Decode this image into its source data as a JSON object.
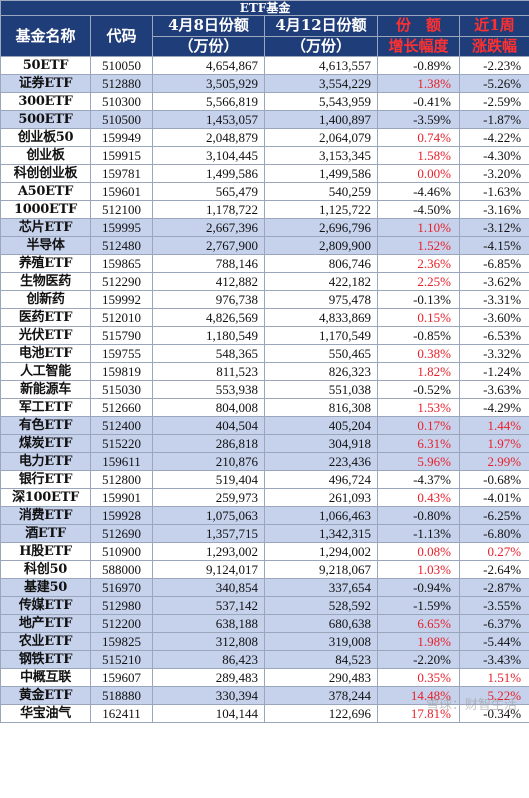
{
  "title": "ETF基金",
  "headers": {
    "name": "基金名称",
    "code": "代码",
    "share_apr8_line1": "4月8日份额",
    "share_apr8_line2": "（万份）",
    "share_apr12_line1": "4月12日份额",
    "share_apr12_line2": "（万份）",
    "growth_line1": "份　额",
    "growth_line2": "增长幅度",
    "week_line1": "近1周",
    "week_line2": "涨跌幅"
  },
  "rows": [
    {
      "name": "50ETF",
      "code": "510050",
      "apr8": "4,654,867",
      "apr12": "4,613,557",
      "growth": "-0.89%",
      "week": "-2.23%",
      "shade": false
    },
    {
      "name": "证券ETF",
      "code": "512880",
      "apr8": "3,505,929",
      "apr12": "3,554,229",
      "growth": "1.38%",
      "week": "-5.26%",
      "shade": true
    },
    {
      "name": "300ETF",
      "code": "510300",
      "apr8": "5,566,819",
      "apr12": "5,543,959",
      "growth": "-0.41%",
      "week": "-2.59%",
      "shade": false
    },
    {
      "name": "500ETF",
      "code": "510500",
      "apr8": "1,453,057",
      "apr12": "1,400,897",
      "growth": "-3.59%",
      "week": "-1.87%",
      "shade": true
    },
    {
      "name": "创业板50",
      "code": "159949",
      "apr8": "2,048,879",
      "apr12": "2,064,079",
      "growth": "0.74%",
      "week": "-4.22%",
      "shade": false
    },
    {
      "name": "创业板",
      "code": "159915",
      "apr8": "3,104,445",
      "apr12": "3,153,345",
      "growth": "1.58%",
      "week": "-4.30%",
      "shade": false
    },
    {
      "name": "科创创业板",
      "code": "159781",
      "apr8": "1,499,586",
      "apr12": "1,499,586",
      "growth": "0.00%",
      "week": "-3.20%",
      "shade": false
    },
    {
      "name": "A50ETF",
      "code": "159601",
      "apr8": "565,479",
      "apr12": "540,259",
      "growth": "-4.46%",
      "week": "-1.63%",
      "shade": false
    },
    {
      "name": "1000ETF",
      "code": "512100",
      "apr8": "1,178,722",
      "apr12": "1,125,722",
      "growth": "-4.50%",
      "week": "-3.16%",
      "shade": false
    },
    {
      "name": "芯片ETF",
      "code": "159995",
      "apr8": "2,667,396",
      "apr12": "2,696,796",
      "growth": "1.10%",
      "week": "-3.12%",
      "shade": true
    },
    {
      "name": "半导体",
      "code": "512480",
      "apr8": "2,767,900",
      "apr12": "2,809,900",
      "growth": "1.52%",
      "week": "-4.15%",
      "shade": true
    },
    {
      "name": "养殖ETF",
      "code": "159865",
      "apr8": "788,146",
      "apr12": "806,746",
      "growth": "2.36%",
      "week": "-6.85%",
      "shade": false
    },
    {
      "name": "生物医药",
      "code": "512290",
      "apr8": "412,882",
      "apr12": "422,182",
      "growth": "2.25%",
      "week": "-3.62%",
      "shade": false
    },
    {
      "name": "创新药",
      "code": "159992",
      "apr8": "976,738",
      "apr12": "975,478",
      "growth": "-0.13%",
      "week": "-3.31%",
      "shade": false
    },
    {
      "name": "医药ETF",
      "code": "512010",
      "apr8": "4,826,569",
      "apr12": "4,833,869",
      "growth": "0.15%",
      "week": "-3.60%",
      "shade": false
    },
    {
      "name": "光伏ETF",
      "code": "515790",
      "apr8": "1,180,549",
      "apr12": "1,170,549",
      "growth": "-0.85%",
      "week": "-6.53%",
      "shade": false
    },
    {
      "name": "电池ETF",
      "code": "159755",
      "apr8": "548,365",
      "apr12": "550,465",
      "growth": "0.38%",
      "week": "-3.32%",
      "shade": false
    },
    {
      "name": "人工智能",
      "code": "159819",
      "apr8": "811,523",
      "apr12": "826,323",
      "growth": "1.82%",
      "week": "-1.24%",
      "shade": false
    },
    {
      "name": "新能源车",
      "code": "515030",
      "apr8": "553,938",
      "apr12": "551,038",
      "growth": "-0.52%",
      "week": "-3.63%",
      "shade": false
    },
    {
      "name": "军工ETF",
      "code": "512660",
      "apr8": "804,008",
      "apr12": "816,308",
      "growth": "1.53%",
      "week": "-4.29%",
      "shade": false
    },
    {
      "name": "有色ETF",
      "code": "512400",
      "apr8": "404,504",
      "apr12": "405,204",
      "growth": "0.17%",
      "week": "1.44%",
      "shade": true
    },
    {
      "name": "煤炭ETF",
      "code": "515220",
      "apr8": "286,818",
      "apr12": "304,918",
      "growth": "6.31%",
      "week": "1.97%",
      "shade": true
    },
    {
      "name": "电力ETF",
      "code": "159611",
      "apr8": "210,876",
      "apr12": "223,436",
      "growth": "5.96%",
      "week": "2.99%",
      "shade": true
    },
    {
      "name": "银行ETF",
      "code": "512800",
      "apr8": "519,404",
      "apr12": "496,724",
      "growth": "-4.37%",
      "week": "-0.68%",
      "shade": false
    },
    {
      "name": "深100ETF",
      "code": "159901",
      "apr8": "259,973",
      "apr12": "261,093",
      "growth": "0.43%",
      "week": "-4.01%",
      "shade": false
    },
    {
      "name": "消费ETF",
      "code": "159928",
      "apr8": "1,075,063",
      "apr12": "1,066,463",
      "growth": "-0.80%",
      "week": "-6.25%",
      "shade": true
    },
    {
      "name": "酒ETF",
      "code": "512690",
      "apr8": "1,357,715",
      "apr12": "1,342,315",
      "growth": "-1.13%",
      "week": "-6.80%",
      "shade": true
    },
    {
      "name": "H股ETF",
      "code": "510900",
      "apr8": "1,293,002",
      "apr12": "1,294,002",
      "growth": "0.08%",
      "week": "0.27%",
      "shade": false
    },
    {
      "name": "科创50",
      "code": "588000",
      "apr8": "9,124,017",
      "apr12": "9,218,067",
      "growth": "1.03%",
      "week": "-2.64%",
      "shade": false
    },
    {
      "name": "基建50",
      "code": "516970",
      "apr8": "340,854",
      "apr12": "337,654",
      "growth": "-0.94%",
      "week": "-2.87%",
      "shade": true
    },
    {
      "name": "传媒ETF",
      "code": "512980",
      "apr8": "537,142",
      "apr12": "528,592",
      "growth": "-1.59%",
      "week": "-3.55%",
      "shade": true
    },
    {
      "name": "地产ETF",
      "code": "512200",
      "apr8": "638,188",
      "apr12": "680,638",
      "growth": "6.65%",
      "week": "-6.37%",
      "shade": true
    },
    {
      "name": "农业ETF",
      "code": "159825",
      "apr8": "312,808",
      "apr12": "319,008",
      "growth": "1.98%",
      "week": "-5.44%",
      "shade": true
    },
    {
      "name": "钢铁ETF",
      "code": "515210",
      "apr8": "86,423",
      "apr12": "84,523",
      "growth": "-2.20%",
      "week": "-3.43%",
      "shade": true
    },
    {
      "name": "中概互联",
      "code": "159607",
      "apr8": "289,483",
      "apr12": "290,483",
      "growth": "0.35%",
      "week": "1.51%",
      "shade": false
    },
    {
      "name": "黄金ETF",
      "code": "518880",
      "apr8": "330,394",
      "apr12": "378,244",
      "growth": "14.48%",
      "week": "5.22%",
      "shade": true
    },
    {
      "name": "华宝油气",
      "code": "162411",
      "apr8": "104,144",
      "apr12": "122,696",
      "growth": "17.81%",
      "week": "-0.34%",
      "shade": false
    }
  ],
  "watermark": "雪球：财智生活"
}
